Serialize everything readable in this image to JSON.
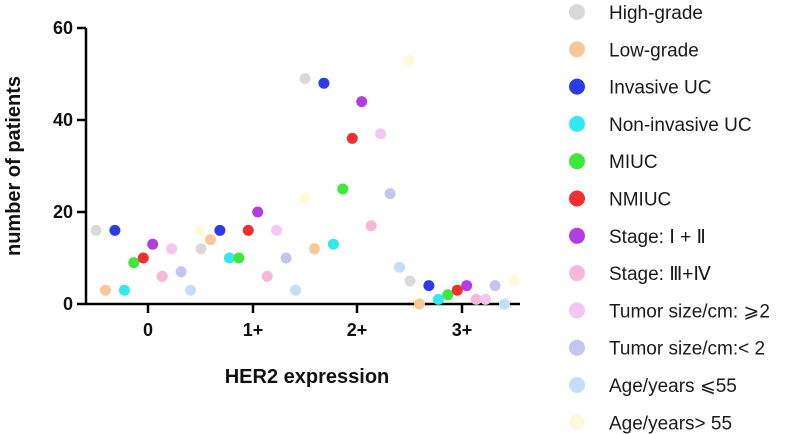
{
  "chart_data": {
    "type": "scatter",
    "xlabel": "HER2 expression",
    "ylabel": "number of patients",
    "x_categories": [
      "0",
      "1+",
      "2+",
      "3+"
    ],
    "ylim": [
      0,
      60
    ],
    "yticks": [
      0,
      20,
      40,
      60
    ],
    "legend_position": "right",
    "series": [
      {
        "name": "High-grade",
        "color": "#d9d9d9",
        "points": [
          {
            "cat": 0,
            "y": 16
          },
          {
            "cat": 1,
            "y": 12
          },
          {
            "cat": 2,
            "y": 49
          },
          {
            "cat": 3,
            "y": 5
          }
        ]
      },
      {
        "name": "Low-grade",
        "color": "#f7c79a",
        "points": [
          {
            "cat": 0,
            "y": 3
          },
          {
            "cat": 1,
            "y": 14
          },
          {
            "cat": 2,
            "y": 12
          },
          {
            "cat": 3,
            "y": 0
          }
        ]
      },
      {
        "name": "Invasive UC",
        "color": "#2a3ce6",
        "points": [
          {
            "cat": 0,
            "y": 16
          },
          {
            "cat": 1,
            "y": 16
          },
          {
            "cat": 2,
            "y": 48
          },
          {
            "cat": 3,
            "y": 4
          }
        ]
      },
      {
        "name": "Non-invasive UC",
        "color": "#33e8f0",
        "points": [
          {
            "cat": 0,
            "y": 3
          },
          {
            "cat": 1,
            "y": 10
          },
          {
            "cat": 2,
            "y": 13
          },
          {
            "cat": 3,
            "y": 1
          }
        ]
      },
      {
        "name": "MIUC",
        "color": "#3ee63e",
        "points": [
          {
            "cat": 0,
            "y": 9
          },
          {
            "cat": 1,
            "y": 10
          },
          {
            "cat": 2,
            "y": 25
          },
          {
            "cat": 3,
            "y": 2
          }
        ]
      },
      {
        "name": "NMIUC",
        "color": "#f03030",
        "points": [
          {
            "cat": 0,
            "y": 10
          },
          {
            "cat": 1,
            "y": 16
          },
          {
            "cat": 2,
            "y": 36
          },
          {
            "cat": 3,
            "y": 3
          }
        ]
      },
      {
        "name": "Stage: Ⅰ + Ⅱ",
        "color": "#b23ee0",
        "points": [
          {
            "cat": 0,
            "y": 13
          },
          {
            "cat": 1,
            "y": 20
          },
          {
            "cat": 2,
            "y": 44
          },
          {
            "cat": 3,
            "y": 4
          }
        ]
      },
      {
        "name": "Stage: Ⅲ+Ⅳ",
        "color": "#f7b8d8",
        "points": [
          {
            "cat": 0,
            "y": 6
          },
          {
            "cat": 1,
            "y": 6
          },
          {
            "cat": 2,
            "y": 17
          },
          {
            "cat": 3,
            "y": 1
          }
        ]
      },
      {
        "name": "Tumor size/cm: ⩾2",
        "color": "#f5c6f0",
        "points": [
          {
            "cat": 0,
            "y": 12
          },
          {
            "cat": 1,
            "y": 16
          },
          {
            "cat": 2,
            "y": 37
          },
          {
            "cat": 3,
            "y": 1
          }
        ]
      },
      {
        "name": "Tumor size/cm:< 2",
        "color": "#c4c4f0",
        "points": [
          {
            "cat": 0,
            "y": 7
          },
          {
            "cat": 1,
            "y": 10
          },
          {
            "cat": 2,
            "y": 24
          },
          {
            "cat": 3,
            "y": 4
          }
        ]
      },
      {
        "name": "Age/years ⩽55",
        "color": "#c5def5",
        "points": [
          {
            "cat": 0,
            "y": 3
          },
          {
            "cat": 1,
            "y": 3
          },
          {
            "cat": 2,
            "y": 8
          },
          {
            "cat": 3,
            "y": 0
          }
        ]
      },
      {
        "name": "Age/years> 55",
        "color": "#fdfadc",
        "points": [
          {
            "cat": 0,
            "y": 16
          },
          {
            "cat": 1,
            "y": 23
          },
          {
            "cat": 2,
            "y": 53
          },
          {
            "cat": 3,
            "y": 5
          }
        ]
      }
    ]
  }
}
